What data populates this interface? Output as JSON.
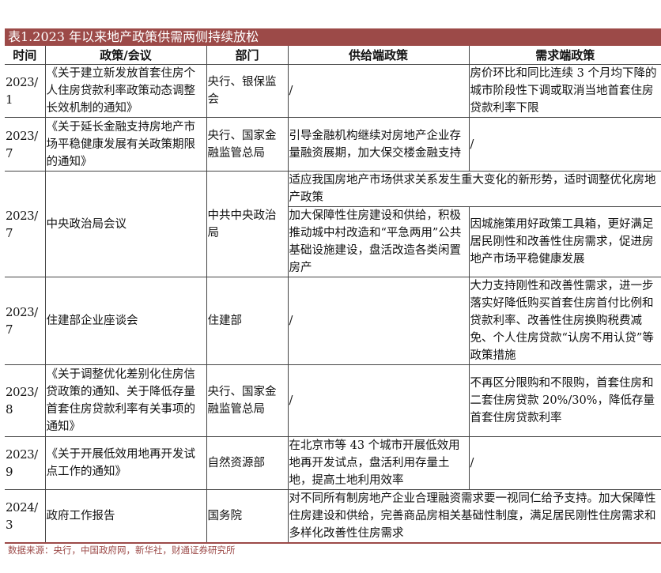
{
  "title": "表1.2023 年以来地产政策供需两侧持续放松",
  "colors": {
    "title_bar": "#9c4a48",
    "footer_text": "#9c4a48"
  },
  "headers": [
    "时间",
    "政策/会议",
    "部门",
    "供给端政策",
    "需求端政策"
  ],
  "rows": [
    {
      "time": "2023/1",
      "policy": "《关于建立新发放首套住房个人住房贷款利率政策动态调整长效机制的通知》",
      "dept": "央行、银保监会",
      "supply": "/",
      "demand": "房价环比和同比连续 3 个月均下降的城市阶段性下调或取消当地首套住房贷款利率下限"
    },
    {
      "time": "2023/7",
      "policy": "《关于延长金融支持房地产市场平稳健康发展有关政策期限的通知》",
      "dept": "央行、国家金融监管总局",
      "supply": "引导金融机构继续对房地产企业存量融资展期，加大保交楼金融支持",
      "demand": "/"
    },
    {
      "time": "2023/7",
      "policy": "中央政治局会议",
      "dept": "中共中央政治局",
      "merged": "适应我国房地产市场供求关系发生重大变化的新形势，适时调整优化房地产政策",
      "supply": "加大保障性住房建设和供给，积极推动城中村改造和“平急两用”公共基础设施建设，盘活改造各类闲置房产",
      "demand": "因城施策用好政策工具箱，更好满足居民刚性和改善性住房需求，促进房地产市场平稳健康发展"
    },
    {
      "time": "2023/7",
      "policy": "住建部企业座谈会",
      "dept": "住建部",
      "supply": "/",
      "demand": "大力支持刚性和改善性需求，进一步落实好降低购买首套住房首付比例和贷款利率、改善性住房换购税费减免、个人住房贷款“认房不用认贷”等政策措施"
    },
    {
      "time": "2023/8",
      "policy": "《关于调整优化差别化住房信贷政策的通知、关于降低存量首套住房贷款利率有关事项的通知》",
      "dept": "央行、国家金融监管总局",
      "supply": "/",
      "demand": "不再区分限购和不限购，首套住房和二套住房贷款 20%/30%，降低存量首套住房贷款利率"
    },
    {
      "time": "2023/9",
      "policy": "《关于开展低效用地再开发试点工作的通知》",
      "dept": "自然资源部",
      "supply": "在北京市等 43 个城市开展低效用地再开发试点，盘活利用存量土地，提高土地利用效率",
      "demand": "/"
    },
    {
      "time": "2024/3",
      "policy": "政府工作报告",
      "dept": "国务院",
      "merged": "对不同所有制房地产企业合理融资需求要一视同仁给予支持。加大保障性住房建设和供给，完善商品房相关基础性制度，满足居民刚性住房需求和多样化改善性住房需求"
    }
  ],
  "footer": "数据来源：央行，中国政府网，新华社，财通证券研究所"
}
